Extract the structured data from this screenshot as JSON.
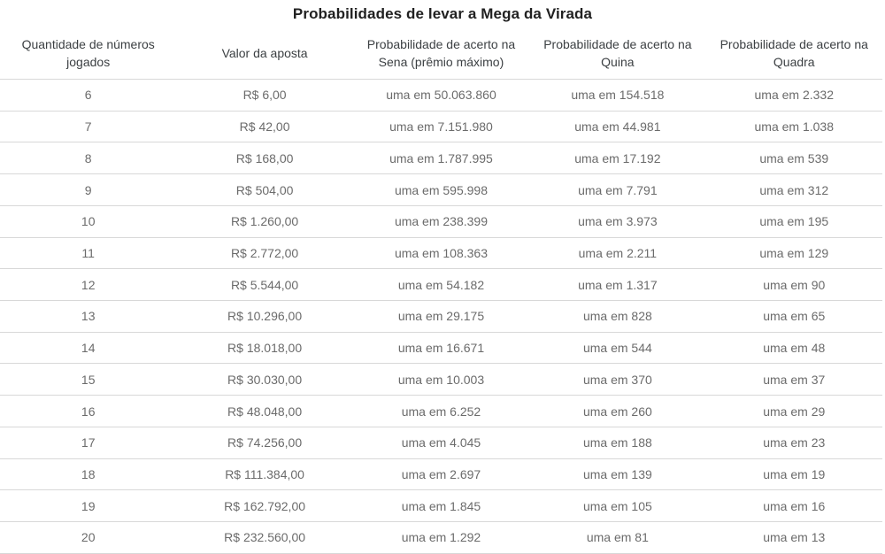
{
  "title": "Probabilidades de levar a Mega da Virada",
  "chart_data": {
    "type": "table",
    "title": "Probabilidades de levar a Mega da Virada",
    "columns": [
      "Quantidade de números jogados",
      "Valor da aposta",
      "Probabilidade de acerto na Sena (prêmio máximo)",
      "Probabilidade de acerto na Quina",
      "Probabilidade de acerto na Quadra"
    ],
    "rows": [
      [
        "6",
        "R$ 6,00",
        "uma em 50.063.860",
        "uma em 154.518",
        "uma em 2.332"
      ],
      [
        "7",
        "R$ 42,00",
        "uma em 7.151.980",
        "uma em 44.981",
        "uma em 1.038"
      ],
      [
        "8",
        "R$ 168,00",
        "uma em 1.787.995",
        "uma em 17.192",
        "uma em 539"
      ],
      [
        "9",
        "R$ 504,00",
        "uma em 595.998",
        "uma em 7.791",
        "uma em 312"
      ],
      [
        "10",
        "R$ 1.260,00",
        "uma em 238.399",
        "uma em 3.973",
        "uma em 195"
      ],
      [
        "11",
        "R$ 2.772,00",
        "uma em 108.363",
        "uma em 2.211",
        "uma em 129"
      ],
      [
        "12",
        "R$ 5.544,00",
        "uma em 54.182",
        "uma em 1.317",
        "uma em 90"
      ],
      [
        "13",
        "R$ 10.296,00",
        "uma em 29.175",
        "uma em 828",
        "uma em 65"
      ],
      [
        "14",
        "R$ 18.018,00",
        "uma em 16.671",
        "uma em 544",
        "uma em 48"
      ],
      [
        "15",
        "R$ 30.030,00",
        "uma em 10.003",
        "uma em 370",
        "uma em 37"
      ],
      [
        "16",
        "R$ 48.048,00",
        "uma em 6.252",
        "uma em 260",
        "uma em 29"
      ],
      [
        "17",
        "R$ 74.256,00",
        "uma em 4.045",
        "uma em 188",
        "uma em 23"
      ],
      [
        "18",
        "R$ 111.384,00",
        "uma em 2.697",
        "uma em 139",
        "uma em 19"
      ],
      [
        "19",
        "R$ 162.792,00",
        "uma em 1.845",
        "uma em 105",
        "uma em 16"
      ],
      [
        "20",
        "R$ 232.560,00",
        "uma em 1.292",
        "uma em 81",
        "uma em 13"
      ]
    ]
  },
  "colors": {
    "background": "#ffffff",
    "title_text": "#212121",
    "header_text": "#3c4043",
    "cell_text": "#6b6b6b",
    "row_border": "#d8d8d8"
  }
}
